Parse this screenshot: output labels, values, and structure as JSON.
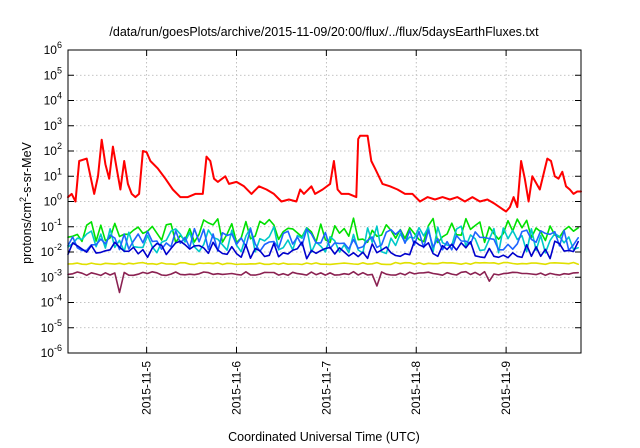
{
  "chart_data": {
    "type": "line",
    "title": "/data/run/goesPlots/archive/2015-11-09/20:00/flux/../flux/5daysEarthFluxes.txt",
    "xlabel": "Coordinated Universal Time (UTC)",
    "ylabel": {
      "prefix": "protons/cm",
      "superscript": "2",
      "suffix": "-s-sr-MeV"
    },
    "y_scale": "log",
    "ylim": [
      1e-06,
      1000000.0
    ],
    "y_ticks": [
      {
        "value": 1000000.0,
        "base": "10",
        "exp": "6"
      },
      {
        "value": 100000.0,
        "base": "10",
        "exp": "5"
      },
      {
        "value": 10000.0,
        "base": "10",
        "exp": "4"
      },
      {
        "value": 1000.0,
        "base": "10",
        "exp": "3"
      },
      {
        "value": 100.0,
        "base": "10",
        "exp": "2"
      },
      {
        "value": 10.0,
        "base": "10",
        "exp": "1"
      },
      {
        "value": 1.0,
        "base": "10",
        "exp": "0"
      },
      {
        "value": 0.1,
        "base": "10",
        "exp": "-1"
      },
      {
        "value": 0.01,
        "base": "10",
        "exp": "-2"
      },
      {
        "value": 0.001,
        "base": "10",
        "exp": "-3"
      },
      {
        "value": 0.0001,
        "base": "10",
        "exp": "-4"
      },
      {
        "value": 1e-05,
        "base": "10",
        "exp": "-5"
      },
      {
        "value": 1e-06,
        "base": "10",
        "exp": "-6"
      }
    ],
    "xlim": [
      "2015-11-04 03:00",
      "2015-11-09 20:00"
    ],
    "x_ticks": [
      {
        "value": "2015-11-05 00:00",
        "label": "2015-11-5"
      },
      {
        "value": "2015-11-06 00:00",
        "label": "2015-11-6"
      },
      {
        "value": "2015-11-07 00:00",
        "label": "2015-11-7"
      },
      {
        "value": "2015-11-08 00:00",
        "label": "2015-11-8"
      },
      {
        "value": "2015-11-09 00:00",
        "label": "2015-11-9"
      }
    ],
    "grid": true,
    "series": [
      {
        "color": "#ff0000",
        "points": [
          [
            "2015-11-04 03:00",
            1.5
          ],
          [
            "2015-11-04 04:00",
            2
          ],
          [
            "2015-11-04 05:00",
            1
          ],
          [
            "2015-11-04 06:00",
            40
          ],
          [
            "2015-11-04 08:00",
            50
          ],
          [
            "2015-11-04 10:00",
            2
          ],
          [
            "2015-11-04 11:00",
            10
          ],
          [
            "2015-11-04 12:00",
            280
          ],
          [
            "2015-11-04 13:00",
            30
          ],
          [
            "2015-11-04 14:00",
            8
          ],
          [
            "2015-11-04 15:00",
            150
          ],
          [
            "2015-11-04 16:00",
            20
          ],
          [
            "2015-11-04 17:00",
            3
          ],
          [
            "2015-11-04 18:00",
            40
          ],
          [
            "2015-11-04 19:00",
            5
          ],
          [
            "2015-11-04 20:00",
            2
          ],
          [
            "2015-11-04 21:00",
            1.5
          ],
          [
            "2015-11-04 22:00",
            2
          ],
          [
            "2015-11-04 23:00",
            100
          ],
          [
            "2015-11-05 00:00",
            90
          ],
          [
            "2015-11-05 01:00",
            40
          ],
          [
            "2015-11-05 03:00",
            20
          ],
          [
            "2015-11-05 05:00",
            8
          ],
          [
            "2015-11-05 07:00",
            3
          ],
          [
            "2015-11-05 09:00",
            1.5
          ],
          [
            "2015-11-05 11:00",
            1.5
          ],
          [
            "2015-11-05 13:00",
            2
          ],
          [
            "2015-11-05 15:00",
            2
          ],
          [
            "2015-11-05 16:00",
            60
          ],
          [
            "2015-11-05 17:00",
            40
          ],
          [
            "2015-11-05 18:00",
            8
          ],
          [
            "2015-11-05 19:00",
            6
          ],
          [
            "2015-11-05 21:00",
            10
          ],
          [
            "2015-11-05 22:00",
            5
          ],
          [
            "2015-11-06 00:00",
            6
          ],
          [
            "2015-11-06 02:00",
            4
          ],
          [
            "2015-11-06 04:00",
            2
          ],
          [
            "2015-11-06 06:00",
            4
          ],
          [
            "2015-11-06 08:00",
            3
          ],
          [
            "2015-11-06 10:00",
            2
          ],
          [
            "2015-11-06 12:00",
            1
          ],
          [
            "2015-11-06 14:00",
            1.2
          ],
          [
            "2015-11-06 16:00",
            1
          ],
          [
            "2015-11-06 17:00",
            3
          ],
          [
            "2015-11-06 18:00",
            2
          ],
          [
            "2015-11-06 20:00",
            4
          ],
          [
            "2015-11-06 21:00",
            2
          ],
          [
            "2015-11-06 23:00",
            3
          ],
          [
            "2015-11-07 01:00",
            5
          ],
          [
            "2015-11-07 02:00",
            40
          ],
          [
            "2015-11-07 03:00",
            3
          ],
          [
            "2015-11-07 04:00",
            2
          ],
          [
            "2015-11-07 06:00",
            2
          ],
          [
            "2015-11-07 08:00",
            1.5
          ],
          [
            "2015-11-07 08:30",
            300
          ],
          [
            "2015-11-07 09:00",
            400
          ],
          [
            "2015-11-07 11:00",
            400
          ],
          [
            "2015-11-07 12:00",
            40
          ],
          [
            "2015-11-07 13:00",
            20
          ],
          [
            "2015-11-07 15:00",
            5
          ],
          [
            "2015-11-07 17:00",
            4
          ],
          [
            "2015-11-07 19:00",
            3
          ],
          [
            "2015-11-07 21:00",
            2
          ],
          [
            "2015-11-07 23:00",
            2
          ],
          [
            "2015-11-08 01:00",
            1
          ],
          [
            "2015-11-08 03:00",
            1.5
          ],
          [
            "2015-11-08 05:00",
            1.2
          ],
          [
            "2015-11-08 07:00",
            1.5
          ],
          [
            "2015-11-08 09:00",
            1.2
          ],
          [
            "2015-11-08 11:00",
            1.5
          ],
          [
            "2015-11-08 13:00",
            1
          ],
          [
            "2015-11-08 15:00",
            1.5
          ],
          [
            "2015-11-08 17:00",
            1
          ],
          [
            "2015-11-08 19:00",
            1.2
          ],
          [
            "2015-11-08 21:00",
            0.8
          ],
          [
            "2015-11-08 23:00",
            0.5
          ],
          [
            "2015-11-09 00:00",
            0.4
          ],
          [
            "2015-11-09 01:00",
            0.6
          ],
          [
            "2015-11-09 02:00",
            1.5
          ],
          [
            "2015-11-09 03:00",
            0.6
          ],
          [
            "2015-11-09 04:00",
            40
          ],
          [
            "2015-11-09 05:00",
            8
          ],
          [
            "2015-11-09 06:00",
            1
          ],
          [
            "2015-11-09 07:00",
            10
          ],
          [
            "2015-11-09 09:00",
            3
          ],
          [
            "2015-11-09 11:00",
            50
          ],
          [
            "2015-11-09 12:00",
            40
          ],
          [
            "2015-11-09 13:00",
            10
          ],
          [
            "2015-11-09 14:00",
            8
          ],
          [
            "2015-11-09 15:00",
            15
          ],
          [
            "2015-11-09 16:00",
            4
          ],
          [
            "2015-11-09 17:00",
            3
          ],
          [
            "2015-11-09 18:00",
            2
          ],
          [
            "2015-11-09 19:00",
            2.5
          ],
          [
            "2015-11-09 20:00",
            2.5
          ]
        ]
      },
      {
        "color": "#00e000",
        "base": 0.07,
        "spread": 1.0,
        "seed": 11,
        "points": []
      },
      {
        "color": "#00c8c8",
        "base": 0.03,
        "spread": 1.1,
        "seed": 23,
        "points": []
      },
      {
        "color": "#1e64ff",
        "base": 0.03,
        "spread": 0.9,
        "seed": 37,
        "points": []
      },
      {
        "color": "#0000cc",
        "base": 0.012,
        "spread": 0.7,
        "seed": 51,
        "points": []
      },
      {
        "color": "#e0e000",
        "base": 0.0035,
        "spread": 0.08,
        "seed": 67,
        "points": []
      },
      {
        "color": "#8b2252",
        "base": 0.0014,
        "spread": 0.15,
        "seed": 79,
        "dips": [
          [
            "2015-11-04 17:00",
            0.00025
          ],
          [
            "2015-11-07 14:00",
            0.00045
          ],
          [
            "2015-11-08 19:00",
            0.0007
          ]
        ],
        "points": []
      }
    ]
  }
}
